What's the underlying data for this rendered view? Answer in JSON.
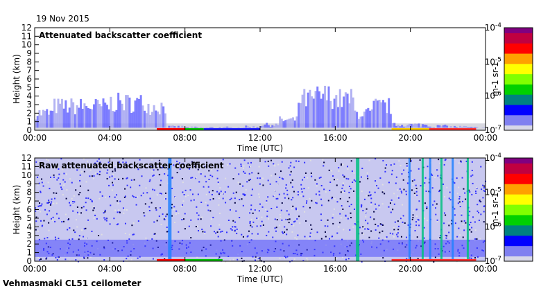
{
  "date": "19 Nov 2015",
  "footer": "Vehmasmaki CL51 ceilometer",
  "chart_data": [
    {
      "type": "heatmap",
      "title": "Attenuated backscatter coefficient",
      "xlabel": "Time (UTC)",
      "ylabel": "Height (km)",
      "xlim": [
        0,
        24
      ],
      "ylim": [
        0,
        12
      ],
      "xticks": [
        "00:00",
        "04:00",
        "08:00",
        "12:00",
        "16:00",
        "20:00",
        "00:00"
      ],
      "yticks": [
        "0",
        "1",
        "2",
        "3",
        "4",
        "5",
        "6",
        "7",
        "8",
        "9",
        "10",
        "11",
        "12"
      ],
      "colorbar": {
        "label": "m-1 sr-1",
        "ticks": [
          "10-7",
          "10-6",
          "10-5",
          "10-4"
        ],
        "scale": "log",
        "range": [
          1e-07,
          0.0001
        ]
      },
      "signal_top_height_km_hourly": [
        2.5,
        3.5,
        3.5,
        3.5,
        4,
        4,
        3.5,
        0.5,
        0.4,
        0.4,
        0.4,
        0.5,
        0.8,
        1.5,
        4.5,
        5,
        4.5,
        2.5,
        3.5,
        0.8,
        0.8,
        0.6,
        0.5,
        0.4
      ]
    },
    {
      "type": "heatmap",
      "title": "Raw attenuated backscatter coefficient",
      "xlabel": "Time (UTC)",
      "ylabel": "Height (km)",
      "xlim": [
        0,
        24
      ],
      "ylim": [
        0,
        12
      ],
      "xticks": [
        "00:00",
        "04:00",
        "08:00",
        "12:00",
        "16:00",
        "20:00",
        "00:00"
      ],
      "yticks": [
        "0",
        "1",
        "2",
        "3",
        "4",
        "5",
        "6",
        "7",
        "8",
        "9",
        "10",
        "11",
        "12"
      ],
      "colorbar": {
        "label": "m-1 sr-1",
        "ticks": [
          "10-7",
          "10-6",
          "10-5",
          "10-4"
        ],
        "scale": "log",
        "range": [
          1e-07,
          0.0001
        ]
      },
      "streak_times_utc": [
        7.1,
        17.1,
        19.9,
        20.6,
        21.0,
        21.6,
        22.2,
        23.0
      ]
    }
  ],
  "colors": {
    "low": "#d8d8e8",
    "blue": "#2020ff",
    "green": "#00d000",
    "yellow": "#ffff00",
    "red": "#ff0000",
    "top": "#800080"
  }
}
